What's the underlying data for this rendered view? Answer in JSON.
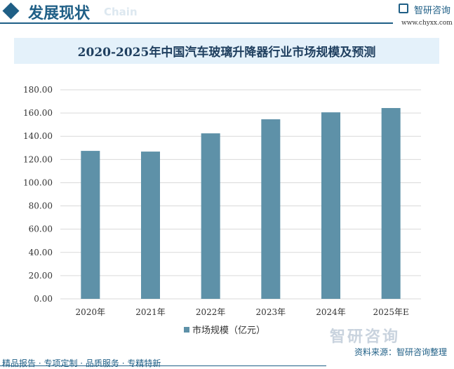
{
  "header": {
    "title": "发展现状",
    "subtitle": "Chain",
    "logo_text": "智研咨询",
    "logo_url": "www.chyxx.com"
  },
  "footer": {
    "source": "资料来源：智研咨询整理",
    "slogan": "精品报告 · 专项定制 · 品质服务 · 专精特新",
    "watermark": "智研咨询"
  },
  "chart_data": {
    "type": "bar",
    "title": "2020-2025年中国汽车玻璃升降器行业市场规模及预测",
    "categories": [
      "2020年",
      "2021年",
      "2022年",
      "2023年",
      "2024年",
      "2025年E"
    ],
    "series": [
      {
        "name": "市场规模（亿元）",
        "values": [
          127.4,
          126.8,
          142.5,
          154.6,
          160.6,
          164.3
        ]
      }
    ],
    "ylim": [
      0,
      180
    ],
    "yticks": [
      "0.00",
      "20.00",
      "40.00",
      "60.00",
      "80.00",
      "100.00",
      "120.00",
      "140.00",
      "160.00",
      "180.00"
    ],
    "grid": true,
    "legend": "bottom",
    "colors": {
      "bar": "#5e91a8",
      "grid": "#d9d9d9"
    }
  }
}
